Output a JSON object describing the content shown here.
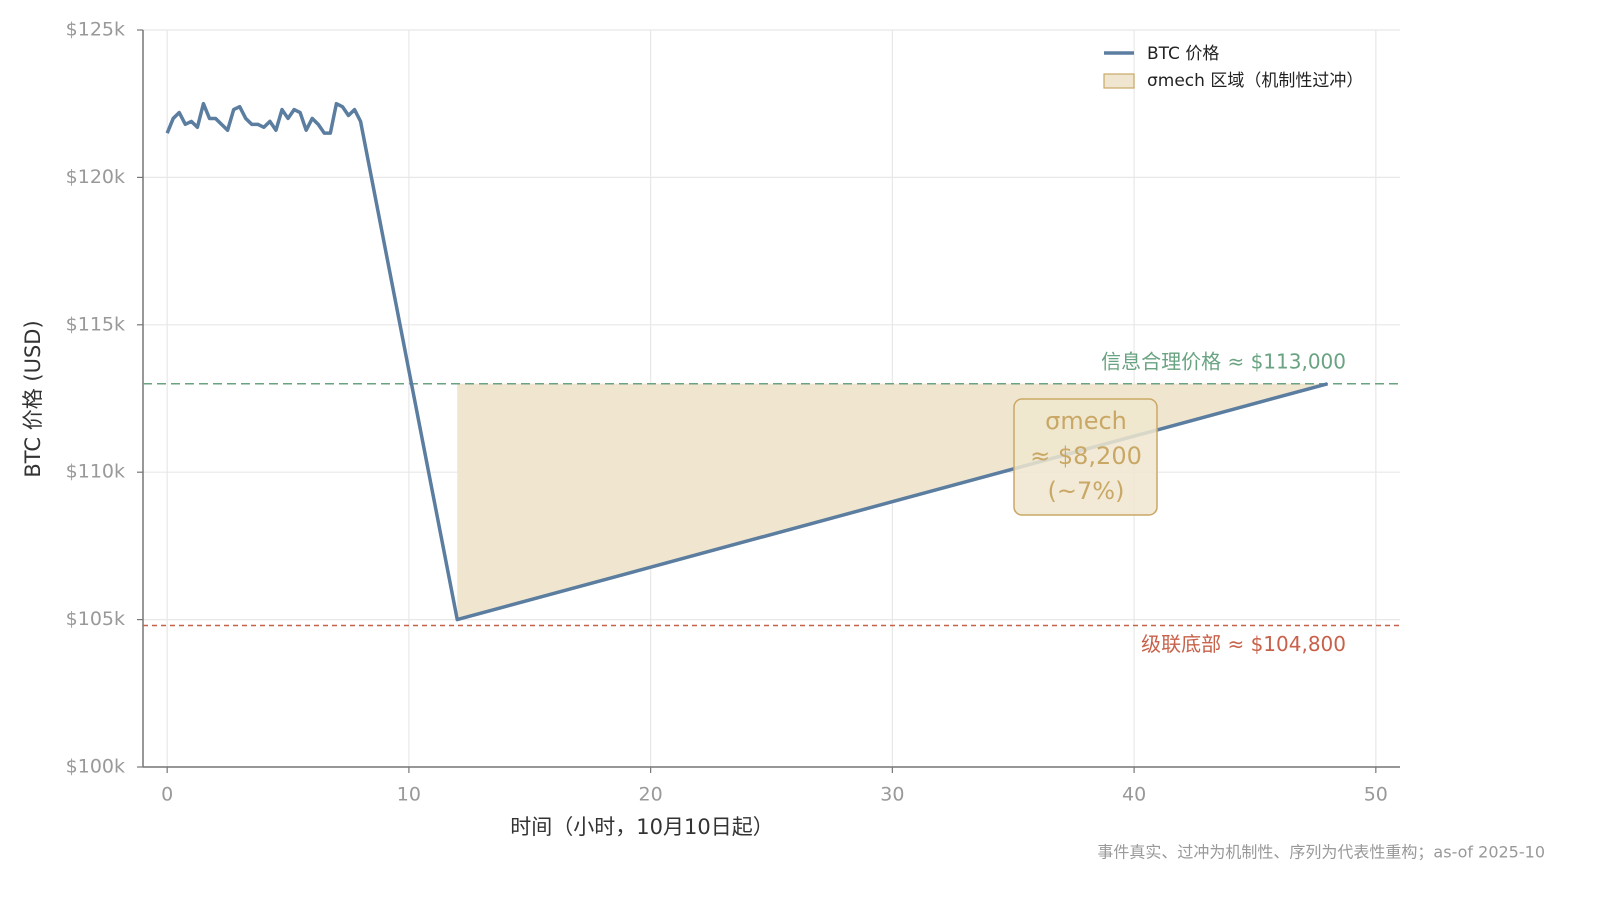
{
  "chart_data": {
    "type": "line",
    "xlabel": "时间（小时，10月10日起）",
    "ylabel": "BTC 价格 (USD)",
    "xlim": [
      -1,
      51
    ],
    "ylim": [
      100000,
      125000
    ],
    "xticks": [
      0,
      10,
      20,
      30,
      40,
      50
    ],
    "yticks": [
      {
        "value": 100000,
        "label": "$100k"
      },
      {
        "value": 105000,
        "label": "$105k"
      },
      {
        "value": 110000,
        "label": "$110k"
      },
      {
        "value": 115000,
        "label": "$115k"
      },
      {
        "value": 120000,
        "label": "$120k"
      },
      {
        "value": 125000,
        "label": "$125k"
      }
    ],
    "grid": true,
    "legend": "upper right",
    "series": [
      {
        "name": "BTC 价格",
        "color": "#5b7da0",
        "x": [
          0,
          0.25,
          0.5,
          0.75,
          1,
          1.25,
          1.5,
          1.75,
          2,
          2.25,
          2.5,
          2.75,
          3,
          3.25,
          3.5,
          3.75,
          4,
          4.25,
          4.5,
          4.75,
          5,
          5.25,
          5.5,
          5.75,
          6,
          6.25,
          6.5,
          6.75,
          7,
          7.25,
          7.5,
          7.75,
          8,
          12,
          48
        ],
        "values": [
          121500,
          122000,
          122200,
          121800,
          121900,
          121700,
          122500,
          122000,
          122000,
          121800,
          121600,
          122300,
          122400,
          122000,
          121800,
          121800,
          121700,
          121900,
          121600,
          122300,
          122000,
          122300,
          122200,
          121600,
          122000,
          121800,
          121500,
          121500,
          122500,
          122400,
          122100,
          122300,
          121900,
          105000,
          113000
        ]
      }
    ],
    "fill": {
      "name": "σmech 区域（机制性过冲）",
      "color": "#f0e6cf",
      "edgecolor": "#c9a866",
      "x": [
        12,
        48
      ],
      "lower": [
        105000,
        113000
      ],
      "upper": [
        113000,
        113000
      ]
    },
    "hlines": [
      {
        "value": 113000,
        "label": "信息合理价格 ≈ $113,000",
        "color": "#6aa382",
        "style": "dashed"
      },
      {
        "value": 104800,
        "label": "级联底部 ≈ $104,800",
        "color": "#c8614a",
        "style": "dotted"
      }
    ],
    "annotation": {
      "lines": [
        "σmech",
        "≈ $8,200",
        "(~7%)"
      ],
      "color": "#c9a866"
    },
    "footnote": "事件真实、过冲为机制性、序列为代表性重构；as-of 2025-10"
  }
}
